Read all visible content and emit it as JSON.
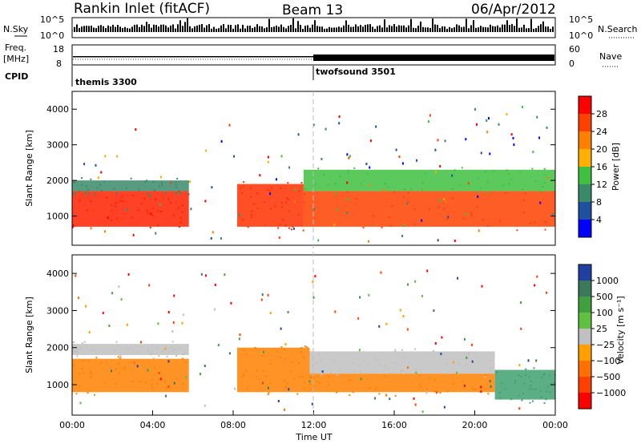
{
  "header": {
    "station": "Rankin Inlet (fitACF)",
    "beam": "Beam 13",
    "date": "06/Apr/2012"
  },
  "aux_panels": {
    "nsky_label": "N.Sky",
    "nsearch_label": "N.Search",
    "noise_ticks": [
      "10^5",
      "10^0"
    ],
    "freq_label_1": "Freq.",
    "freq_label_2": "[MHz]",
    "freq_ticks": [
      "18",
      "8"
    ],
    "nave_label": "Nave",
    "nave_ticks": [
      "60",
      "0"
    ],
    "cpid_label": "CPID",
    "cpid_1": "themis 3300",
    "cpid_2": "twofsound 3501"
  },
  "chart_data": [
    {
      "type": "heatmap",
      "panel": "power",
      "ylabel": "Slant Range [km]",
      "y_ticks": [
        1000,
        2000,
        3000,
        4000
      ],
      "ylim": [
        180,
        4500
      ],
      "xlim_hours": [
        0,
        24
      ],
      "colorbar_label": "Power [dB]",
      "colorbar_ticks": [
        "28",
        "24",
        "20",
        "16",
        "12",
        "8",
        "4"
      ],
      "colorbar_colors": [
        "#ff0000",
        "#ff4000",
        "#ff8000",
        "#ffb000",
        "#40c040",
        "#3a8a6a",
        "#1f4fa0",
        "#0000ff"
      ],
      "bands": [
        {
          "t0": 0.0,
          "t1": 5.8,
          "r0": 700,
          "r1": 1700,
          "color": "#ff2000"
        },
        {
          "t0": 0.0,
          "t1": 5.8,
          "r0": 1700,
          "r1": 2000,
          "color": "#3a8a6a"
        },
        {
          "t0": 8.2,
          "t1": 11.5,
          "r0": 700,
          "r1": 1900,
          "color": "#ff3000"
        },
        {
          "t0": 11.5,
          "t1": 24.0,
          "r0": 700,
          "r1": 1700,
          "color": "#ff4000"
        },
        {
          "t0": 11.5,
          "t1": 24.0,
          "r0": 1700,
          "r1": 2300,
          "color": "#40c040"
        }
      ]
    },
    {
      "type": "heatmap",
      "panel": "velocity",
      "ylabel": "Slant Range [km]",
      "y_ticks": [
        1000,
        2000,
        3000,
        4000
      ],
      "ylim": [
        180,
        4500
      ],
      "xlim_hours": [
        0,
        24
      ],
      "xlabel": "Time UT",
      "x_ticks": [
        "00:00",
        "04:00",
        "08:00",
        "12:00",
        "16:00",
        "20:00",
        "00:00"
      ],
      "colorbar_label": "Velocity [m s⁻¹]",
      "colorbar_ticks": [
        "1000",
        "500",
        "100",
        "25",
        "−25",
        "−100",
        "−500",
        "−1000"
      ],
      "colorbar_colors": [
        "#2040a0",
        "#3a7a5a",
        "#40a040",
        "#60c040",
        "#c0c0c0",
        "#ffa000",
        "#ff7000",
        "#ff4000",
        "#ff0000"
      ],
      "bands": [
        {
          "t0": 0.0,
          "t1": 5.8,
          "r0": 800,
          "r1": 1700,
          "color": "#ff8000"
        },
        {
          "t0": 0.0,
          "t1": 5.8,
          "r0": 1800,
          "r1": 2100,
          "color": "#c0c0c0"
        },
        {
          "t0": 8.2,
          "t1": 11.8,
          "r0": 800,
          "r1": 2000,
          "color": "#ff8000"
        },
        {
          "t0": 11.8,
          "t1": 21.0,
          "r0": 800,
          "r1": 1300,
          "color": "#ff8000"
        },
        {
          "t0": 11.8,
          "t1": 21.0,
          "r0": 1300,
          "r1": 1900,
          "color": "#c0c0c0"
        },
        {
          "t0": 21.0,
          "t1": 24.0,
          "r0": 600,
          "r1": 1400,
          "color": "#40a070"
        }
      ]
    }
  ]
}
